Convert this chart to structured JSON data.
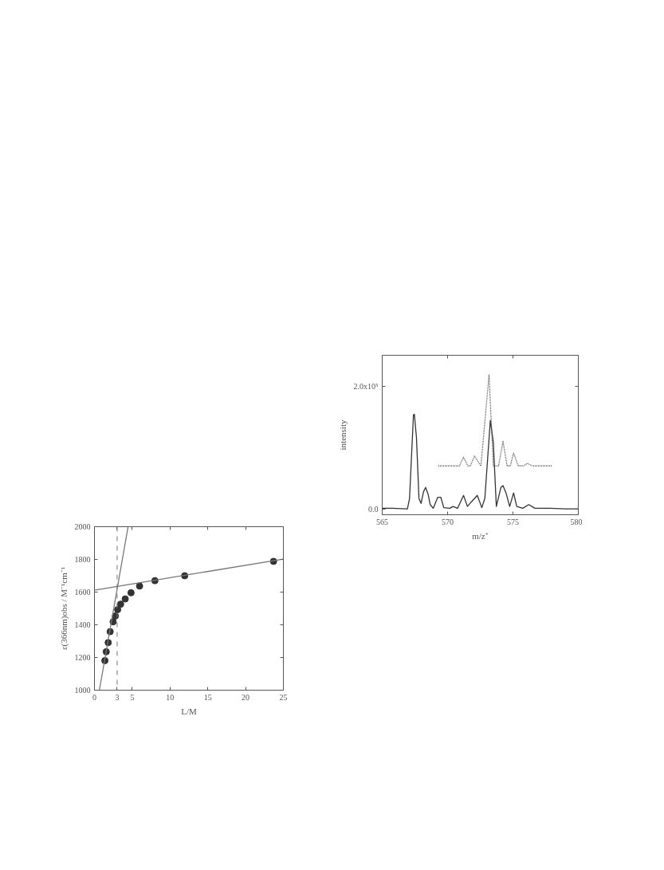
{
  "chart_data": [
    {
      "type": "scatter",
      "xlabel": "L/M",
      "ylabel": "ε(366nm)obs / M⁻¹cm⁻¹",
      "xlim": [
        0,
        25
      ],
      "xticks": [
        0,
        3,
        5,
        10,
        15,
        20,
        25
      ],
      "ylim": [
        1000,
        2000
      ],
      "yticks": [
        1000,
        1200,
        1400,
        1600,
        1800,
        2000
      ],
      "grid": false,
      "x": [
        1.38,
        1.56,
        1.82,
        2.08,
        2.47,
        2.77,
        3.07,
        3.46,
        4.07,
        4.84,
        5.97,
        8.0,
        11.94,
        23.7
      ],
      "series": [
        {
          "color": "#333333",
          "marker": "circle",
          "values": [
            1181,
            1235,
            1291,
            1358,
            1418,
            1454,
            1493,
            1526,
            1558,
            1596,
            1637,
            1670,
            1700,
            1788
          ]
        },
        {
          "type": "line",
          "color": "#777777",
          "x": [
            0.65,
            4.45
          ],
          "values": [
            1000,
            2000
          ]
        },
        {
          "type": "line",
          "color": "#777777",
          "x": [
            0,
            25
          ],
          "values": [
            1612,
            1802
          ]
        }
      ],
      "ref_lines": [
        {
          "axis": "x",
          "value": 3,
          "color": "#777777",
          "line_style": "dashed"
        }
      ]
    },
    {
      "type": "line",
      "xlabel": "m/z⁺",
      "ylabel": "intensity",
      "xlim": [
        565,
        580
      ],
      "xticks": [
        565,
        570,
        575,
        580
      ],
      "ylim": [
        -9500,
        250000
      ],
      "yticks": [
        {
          "value": 0,
          "label": "0.0"
        },
        {
          "value": 200000,
          "label": "2.0x10⁵"
        }
      ],
      "grid": false,
      "series": [
        {
          "color": "#333333",
          "line_style": "solid",
          "x": [
            565,
            565.77,
            566.93,
            567.09,
            567.39,
            567.46,
            567.62,
            567.81,
            567.97,
            568.16,
            568.32,
            568.51,
            568.67,
            568.9,
            569.25,
            569.48,
            569.71,
            570.18,
            570.41,
            570.76,
            571.22,
            571.52,
            571.8,
            572.27,
            572.62,
            572.85,
            573.27,
            573.5,
            573.73,
            574.08,
            574.24,
            574.47,
            574.75,
            575.05,
            575.29,
            575.75,
            576.21,
            576.68,
            577.84,
            579,
            580
          ],
          "values": [
            1000,
            1000,
            0,
            17000,
            153000,
            154000,
            116000,
            17000,
            9000,
            28000,
            35000,
            24000,
            7000,
            1000,
            19000,
            19000,
            2000,
            1000,
            4000,
            1000,
            22000,
            4000,
            11000,
            22000,
            2000,
            17000,
            144000,
            108000,
            4000,
            35000,
            38000,
            26000,
            4000,
            26000,
            4000,
            1000,
            7000,
            1000,
            1000,
            0,
            0
          ]
        },
        {
          "color": "#555555",
          "line_style": "dotted",
          "x": [
            569.3,
            570.9,
            571.22,
            571.55,
            571.75,
            572.05,
            572.55,
            573.17,
            573.5,
            573.9,
            574.24,
            574.55,
            574.8,
            575.05,
            575.4,
            575.8,
            576.1,
            576.5,
            578.0
          ],
          "values": [
            70000,
            70000,
            84000,
            70000,
            70000,
            86000,
            70000,
            218000,
            70000,
            70000,
            110000,
            70000,
            70000,
            91000,
            70000,
            70000,
            74000,
            70000,
            70000
          ]
        }
      ]
    }
  ]
}
